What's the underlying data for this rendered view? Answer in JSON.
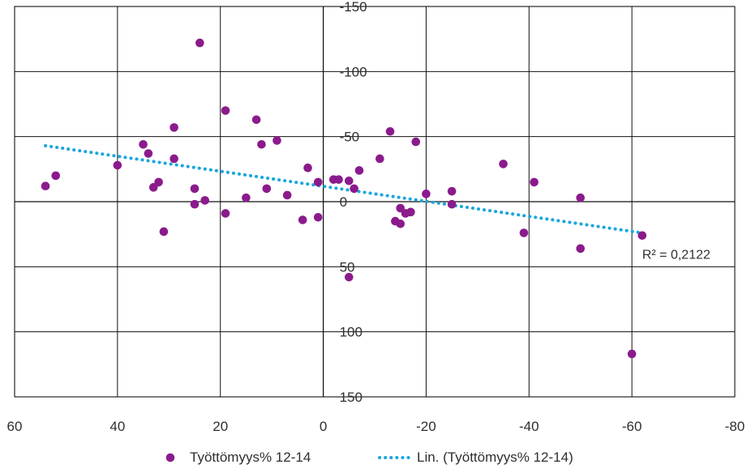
{
  "chart_data": {
    "type": "scatter",
    "title": "",
    "xlabel": "",
    "ylabel": "",
    "xlim": [
      60,
      -80
    ],
    "ylim": [
      -150,
      150
    ],
    "x_ticks": [
      60,
      40,
      20,
      0,
      -20,
      -40,
      -60,
      -80
    ],
    "y_ticks": [
      -150,
      -100,
      -50,
      0,
      50,
      100,
      150
    ],
    "x_tick_labels": [
      "60",
      "40",
      "20",
      "0",
      "-20",
      "-40",
      "-60",
      "-80"
    ],
    "y_tick_labels": [
      "-150",
      "-100",
      "-50",
      "0",
      "50",
      "100",
      "150"
    ],
    "grid": true,
    "legend_position": "bottom",
    "series": [
      {
        "name": "Työttömyys% 12-14",
        "color": "#8b1b8c",
        "points": [
          {
            "x": 54,
            "y": -12
          },
          {
            "x": 52,
            "y": -20
          },
          {
            "x": 40,
            "y": -28
          },
          {
            "x": 35,
            "y": -44
          },
          {
            "x": 34,
            "y": -37
          },
          {
            "x": 33,
            "y": -11
          },
          {
            "x": 32,
            "y": -15
          },
          {
            "x": 31,
            "y": 23
          },
          {
            "x": 29,
            "y": -57
          },
          {
            "x": 29,
            "y": -33
          },
          {
            "x": 25,
            "y": -10
          },
          {
            "x": 25,
            "y": 2
          },
          {
            "x": 24,
            "y": -122
          },
          {
            "x": 23,
            "y": -1
          },
          {
            "x": 19,
            "y": -70
          },
          {
            "x": 19,
            "y": 9
          },
          {
            "x": 15,
            "y": -3
          },
          {
            "x": 13,
            "y": -63
          },
          {
            "x": 12,
            "y": -44
          },
          {
            "x": 11,
            "y": -10
          },
          {
            "x": 9,
            "y": -47
          },
          {
            "x": 7,
            "y": -5
          },
          {
            "x": 4,
            "y": 14
          },
          {
            "x": 3,
            "y": -26
          },
          {
            "x": 1,
            "y": 12
          },
          {
            "x": 1,
            "y": -15
          },
          {
            "x": -2,
            "y": -17
          },
          {
            "x": -3,
            "y": -17
          },
          {
            "x": -5,
            "y": -16
          },
          {
            "x": -5,
            "y": 58
          },
          {
            "x": -6,
            "y": -10
          },
          {
            "x": -7,
            "y": -24
          },
          {
            "x": -11,
            "y": -33
          },
          {
            "x": -13,
            "y": -54
          },
          {
            "x": -14,
            "y": 15
          },
          {
            "x": -15,
            "y": 17
          },
          {
            "x": -15,
            "y": 5
          },
          {
            "x": -16,
            "y": 9
          },
          {
            "x": -17,
            "y": 8
          },
          {
            "x": -18,
            "y": -46
          },
          {
            "x": -20,
            "y": -6
          },
          {
            "x": -25,
            "y": -8
          },
          {
            "x": -25,
            "y": 2
          },
          {
            "x": -35,
            "y": -29
          },
          {
            "x": -39,
            "y": 24
          },
          {
            "x": -41,
            "y": -15
          },
          {
            "x": -50,
            "y": -3
          },
          {
            "x": -50,
            "y": 36
          },
          {
            "x": -60,
            "y": 117
          },
          {
            "x": -62,
            "y": 26
          }
        ]
      },
      {
        "name": "Lin. (Työttömyys% 12-14)",
        "color": "#1aa6dc",
        "style": "dotted",
        "line": [
          {
            "x": 54,
            "y": -43
          },
          {
            "x": -62,
            "y": 24
          }
        ]
      }
    ],
    "annotations": [
      {
        "text": "R² = 0,2122",
        "x": -62,
        "y": 40
      }
    ]
  }
}
